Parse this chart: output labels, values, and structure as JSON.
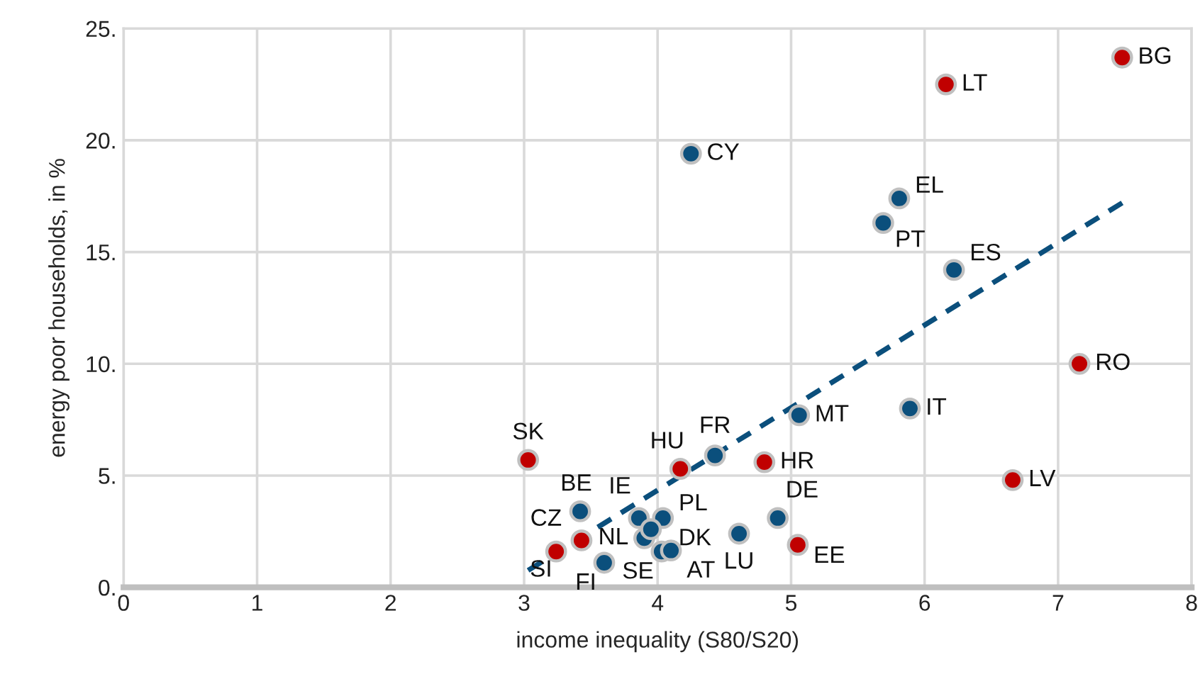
{
  "chart_data": {
    "type": "scatter",
    "xlabel": "income inequality (S80/S20)",
    "ylabel": "energy poor households, in %",
    "xlim": [
      0,
      8
    ],
    "xticks": [
      0,
      1,
      2,
      3,
      4,
      5,
      6,
      7,
      8
    ],
    "ylim": [
      0,
      25
    ],
    "yticks": [
      {
        "value": 0,
        "label": "0."
      },
      {
        "value": 5,
        "label": "5."
      },
      {
        "value": 10,
        "label": "10."
      },
      {
        "value": 15,
        "label": "15."
      },
      {
        "value": 20,
        "label": "20."
      },
      {
        "value": 25,
        "label": "25."
      }
    ],
    "grid": true,
    "marker": "circle",
    "series": [
      {
        "color": "#c00000",
        "x": [
          7.48,
          6.16,
          7.16,
          6.66,
          3.03,
          4.17,
          4.8,
          5.05,
          3.43,
          3.24
        ],
        "values": [
          23.7,
          22.5,
          10.0,
          4.8,
          5.7,
          5.3,
          5.6,
          1.9,
          2.1,
          1.6
        ]
      },
      {
        "color": "#0b4f7c",
        "x": [
          4.25,
          5.81,
          5.69,
          6.22,
          5.89,
          5.06,
          4.43,
          4.9,
          4.61,
          3.42,
          3.86,
          4.04,
          3.9,
          3.95,
          4.03,
          4.1,
          3.6
        ],
        "values": [
          19.4,
          17.4,
          16.3,
          14.2,
          8.0,
          7.7,
          5.9,
          3.1,
          2.4,
          3.4,
          3.1,
          3.1,
          2.2,
          2.6,
          1.6,
          1.65,
          1.1
        ]
      },
      {
        "type": "line",
        "color": "#0b4f7c",
        "line_style": "dashed",
        "marker": "none",
        "x": [
          3.03,
          7.48
        ],
        "values": [
          0.76,
          17.2
        ]
      }
    ],
    "annotations": [
      {
        "text": "BG",
        "x": 7.48,
        "y": 23.7
      },
      {
        "text": "LT",
        "x": 6.16,
        "y": 22.5
      },
      {
        "text": "RO",
        "x": 7.16,
        "y": 10.0
      },
      {
        "text": "LV",
        "x": 6.66,
        "y": 4.8
      },
      {
        "text": "SK",
        "x": 3.03,
        "y": 5.7
      },
      {
        "text": "HU",
        "x": 4.17,
        "y": 5.3
      },
      {
        "text": "HR",
        "x": 4.8,
        "y": 5.6
      },
      {
        "text": "EE",
        "x": 5.05,
        "y": 1.9
      },
      {
        "text": "CZ",
        "x": 3.43,
        "y": 2.1
      },
      {
        "text": "SI",
        "x": 3.24,
        "y": 1.6
      },
      {
        "text": "CY",
        "x": 4.25,
        "y": 19.4
      },
      {
        "text": "EL",
        "x": 5.81,
        "y": 17.4
      },
      {
        "text": "PT",
        "x": 5.69,
        "y": 16.3
      },
      {
        "text": "ES",
        "x": 6.22,
        "y": 14.2
      },
      {
        "text": "IT",
        "x": 5.89,
        "y": 8.0
      },
      {
        "text": "MT",
        "x": 5.06,
        "y": 7.7
      },
      {
        "text": "FR",
        "x": 4.43,
        "y": 5.9
      },
      {
        "text": "DE",
        "x": 4.9,
        "y": 3.1
      },
      {
        "text": "LU",
        "x": 4.61,
        "y": 2.4
      },
      {
        "text": "BE",
        "x": 3.42,
        "y": 3.4
      },
      {
        "text": "IE",
        "x": 3.86,
        "y": 3.1
      },
      {
        "text": "PL",
        "x": 4.04,
        "y": 3.1
      },
      {
        "text": "NL",
        "x": 3.9,
        "y": 2.2
      },
      {
        "text": "DK",
        "x": 3.95,
        "y": 2.6
      },
      {
        "text": "SE",
        "x": 4.03,
        "y": 1.6
      },
      {
        "text": "AT",
        "x": 4.1,
        "y": 1.65
      },
      {
        "text": "FI",
        "x": 3.6,
        "y": 1.1
      }
    ]
  }
}
